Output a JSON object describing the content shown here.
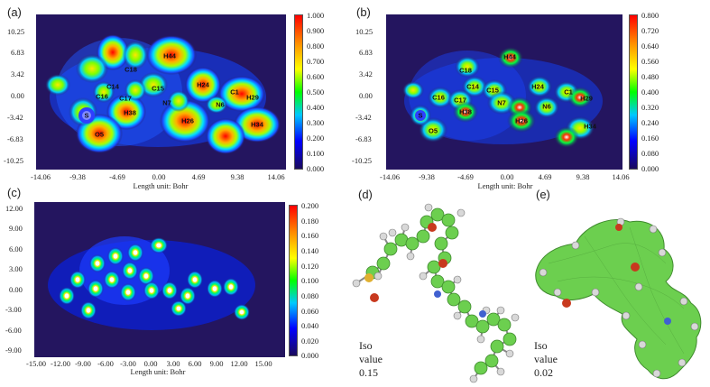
{
  "panels": {
    "a": {
      "label": "(a)",
      "yticks": [
        "10.25",
        "6.83",
        "3.42",
        "0.00",
        "-3.42",
        "-6.83",
        "-10.25"
      ],
      "xticks": [
        "-14.06",
        "-9.38",
        "-4.69",
        "0.00",
        "4.69",
        "9.38",
        "14.06"
      ],
      "unit": "Length unit: Bohr",
      "cbticks": [
        "1.000",
        "0.900",
        "0.800",
        "0.700",
        "0.600",
        "0.500",
        "0.400",
        "0.300",
        "0.200",
        "0.100",
        "0.000"
      ],
      "atoms": [
        "H44",
        "C18",
        "C14",
        "C15",
        "H24",
        "C1",
        "H29",
        "C16",
        "C17",
        "N7",
        "N6",
        "S",
        "H38",
        "H26",
        "H34",
        "O5"
      ]
    },
    "b": {
      "label": "(b)",
      "yticks": [
        "10.25",
        "6.83",
        "3.42",
        "0.00",
        "-3.42",
        "-6.83",
        "-10.25"
      ],
      "xticks": [
        "-14.06",
        "-9.38",
        "-4.69",
        "0.00",
        "4.69",
        "9.38",
        "14.06"
      ],
      "unit": "Length unit: Bohr",
      "cbticks": [
        "0.800",
        "0.720",
        "0.640",
        "0.560",
        "0.480",
        "0.400",
        "0.320",
        "0.240",
        "0.160",
        "0.080",
        "0.000"
      ],
      "atoms": [
        "H44",
        "C18",
        "C14",
        "C15",
        "H24",
        "C1",
        "H29",
        "C16",
        "C17",
        "N7",
        "N6",
        "S",
        "H38",
        "H26",
        "H34",
        "O5"
      ]
    },
    "c": {
      "label": "(c)",
      "yticks": [
        "12.00",
        "9.00",
        "6.00",
        "3.00",
        "0.00",
        "-3.00",
        "-6.00",
        "-9.00"
      ],
      "xticks": [
        "-15.00",
        "-12.00",
        "-9.00",
        "-6.00",
        "-3.00",
        "0.00",
        "3.00",
        "6.00",
        "9.00",
        "12.00",
        "15.00"
      ],
      "unit": "Length unit: Bohr",
      "cbticks": [
        "0.200",
        "0.180",
        "0.160",
        "0.140",
        "0.120",
        "0.100",
        "0.080",
        "0.060",
        "0.040",
        "0.020",
        "0.000"
      ]
    },
    "d": {
      "label": "(d)",
      "iso": "Iso value 0.15"
    },
    "e": {
      "label": "(e)",
      "iso": "Iso value 0.02"
    }
  },
  "colors": {
    "background": "#24155f",
    "colormap": [
      "#ff0000",
      "#ff8c00",
      "#ffff00",
      "#00ff00",
      "#00c8ff",
      "#0000ff",
      "#1a0a5c"
    ],
    "isosurface": "#6ccf4f"
  }
}
